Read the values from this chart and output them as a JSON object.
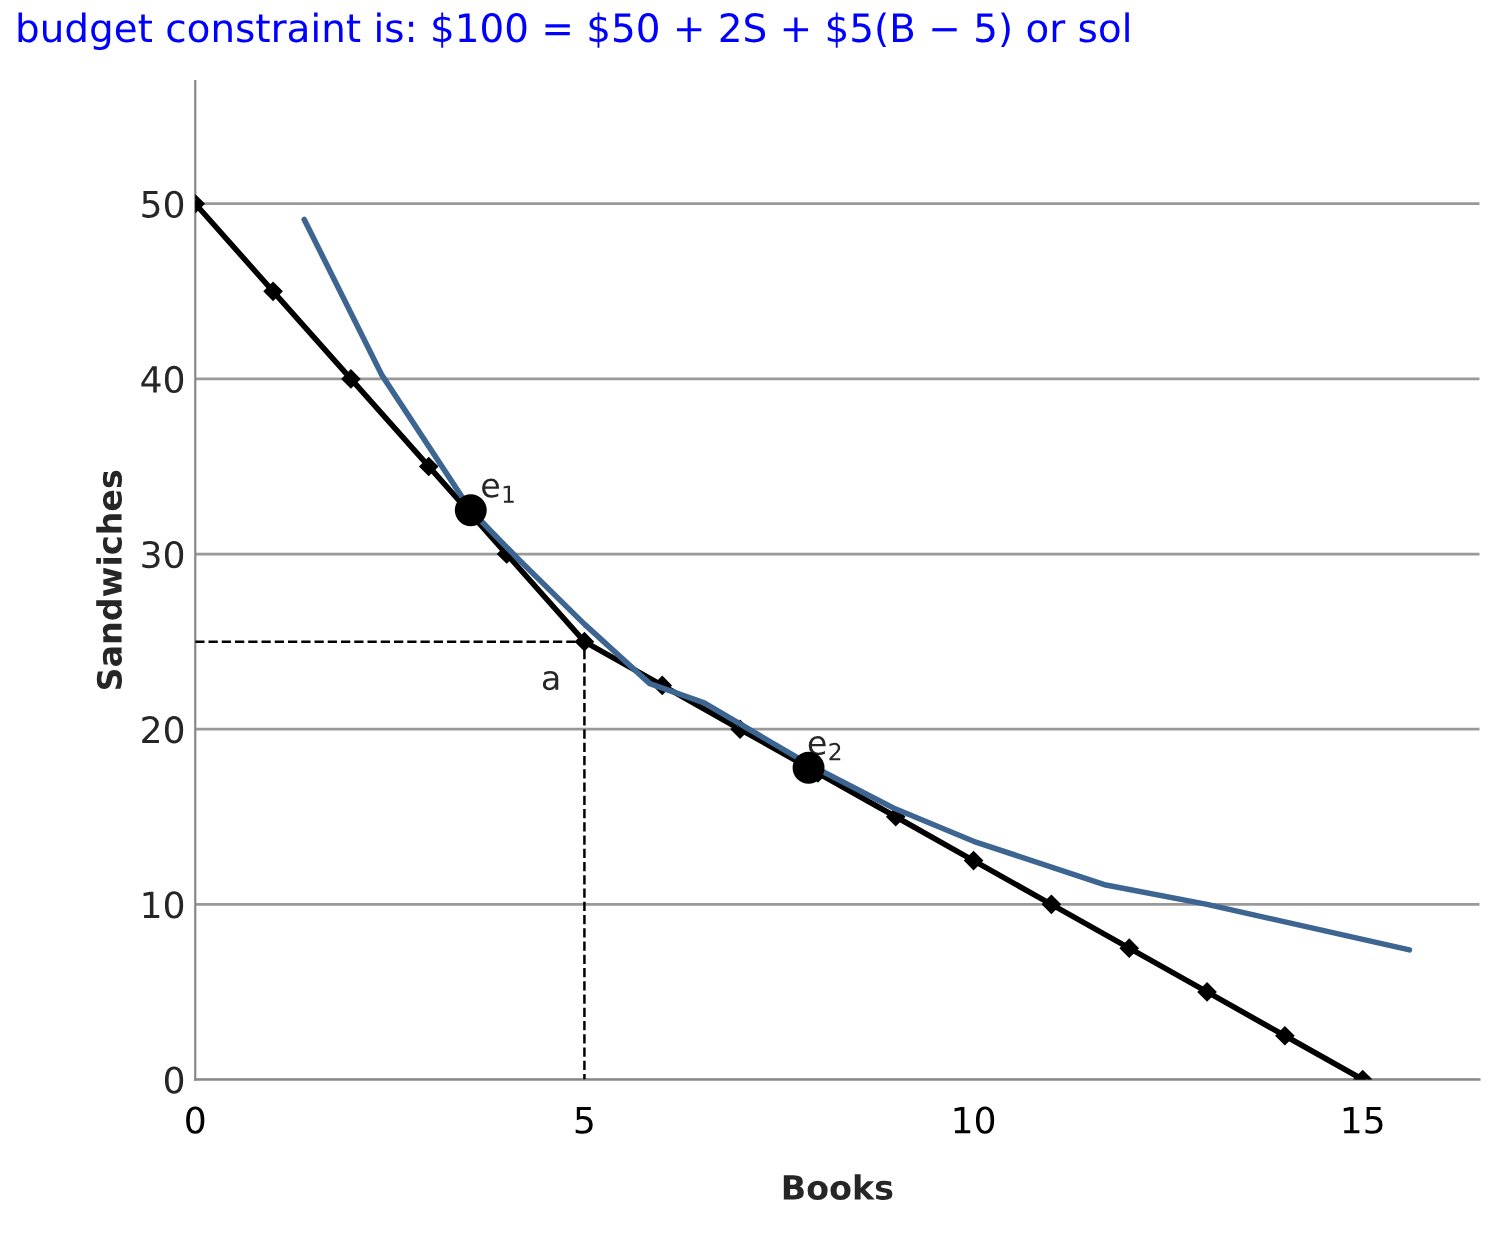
{
  "chart_data": {
    "type": "line",
    "title": "budget constraint is: $100 = $50 + 2S + $5(B − 5) or sol",
    "xlabel": "Books",
    "ylabel": "Sandwiches",
    "xlim": [
      0,
      16.5
    ],
    "ylim": [
      0,
      57
    ],
    "xticks": [
      0,
      5,
      10,
      15
    ],
    "yticks": [
      0,
      10,
      20,
      30,
      40,
      50
    ],
    "grid": "y",
    "legend": false,
    "series": [
      {
        "color": "#000000",
        "marker": "diamond",
        "line_style": "solid",
        "x": [
          0,
          1,
          2,
          3,
          4,
          5,
          6,
          7,
          8,
          9,
          10,
          11,
          12,
          13,
          14,
          15
        ],
        "values": [
          50,
          45,
          40,
          35,
          30,
          25,
          22.5,
          20,
          17.5,
          15,
          12.5,
          10,
          7.5,
          5,
          2.5,
          0
        ]
      },
      {
        "color": "#3d6591",
        "marker": "none",
        "line_style": "solid",
        "x": [
          1.4,
          2.4,
          3.54,
          4.13,
          5.0,
          5.84,
          6.54,
          7.88,
          8.97,
          10,
          11.7,
          13.0,
          15.6
        ],
        "values": [
          49.1,
          40.2,
          32.5,
          29.8,
          26.0,
          22.6,
          21.5,
          18.0,
          15.5,
          13.6,
          11.1,
          10.0,
          7.4
        ]
      },
      {
        "color": "#000000",
        "marker": "none",
        "line_style": "dashed",
        "x": [
          0,
          5,
          5
        ],
        "values": [
          25,
          25,
          0
        ]
      },
      {
        "type": "scatter",
        "color": "#000000",
        "marker": "circle",
        "x": [
          3.54,
          7.88
        ],
        "values": [
          32.5,
          17.8
        ]
      }
    ],
    "annotations": [
      {
        "text": "e$_{1}$",
        "x": 3.54,
        "y": 32.5
      },
      {
        "text": "a",
        "x": 5,
        "y": 25
      },
      {
        "text": "e$_{2}$",
        "x": 7.88,
        "y": 17.8
      }
    ]
  }
}
